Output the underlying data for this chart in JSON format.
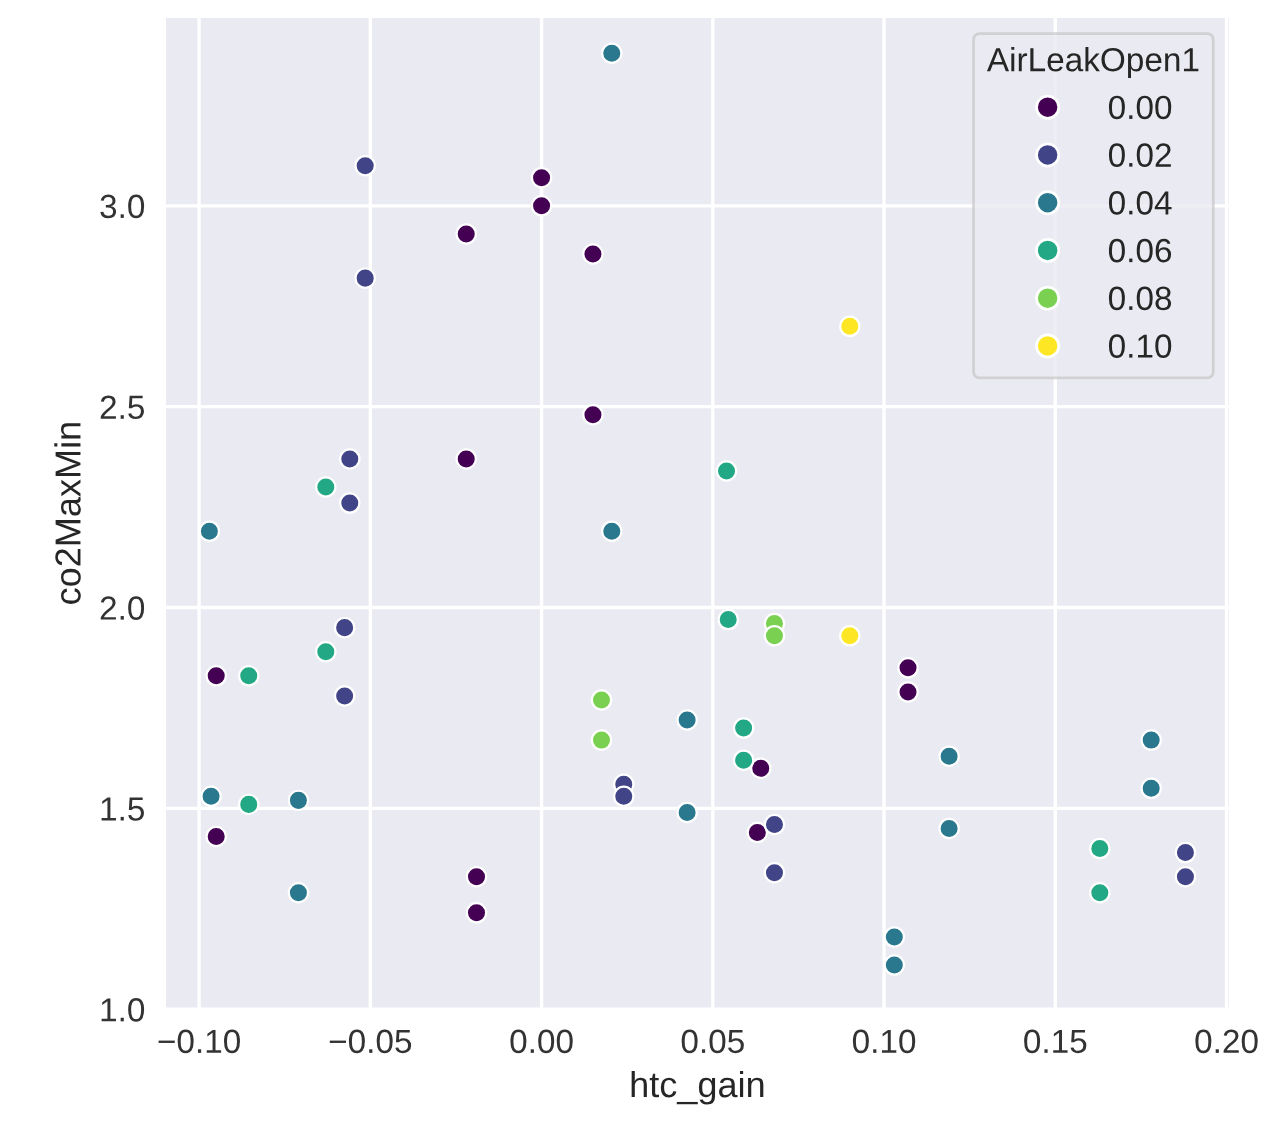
{
  "chart_data": {
    "type": "scatter",
    "xlabel": "htc_gain",
    "ylabel": "co2MaxMin",
    "legend_title": "AirLeakOpen1",
    "legend": "top right",
    "grid": true,
    "marker": "circle",
    "xlim": [
      -0.11,
      0.201
    ],
    "ylim": [
      1.0,
      3.47
    ],
    "xticks": [
      {
        "value": -0.1,
        "label": "−0.10"
      },
      {
        "value": -0.05,
        "label": "−0.05"
      },
      {
        "value": 0,
        "label": "0.00"
      },
      {
        "value": 0.05,
        "label": "0.05"
      },
      {
        "value": 0.1,
        "label": "0.10"
      },
      {
        "value": 0.15,
        "label": "0.15"
      },
      {
        "value": 0.2,
        "label": "0.20"
      }
    ],
    "yticks": [
      {
        "value": 1.0,
        "label": "1.0"
      },
      {
        "value": 1.5,
        "label": "1.5"
      },
      {
        "value": 2.0,
        "label": "2.0"
      },
      {
        "value": 2.5,
        "label": "2.5"
      },
      {
        "value": 3.0,
        "label": "3.0"
      }
    ],
    "series": [
      {
        "name": "0.00",
        "color": "#440154",
        "x": [
          0,
          0,
          -0.022,
          0.015,
          0.015,
          -0.022,
          -0.095,
          -0.095,
          -0.019,
          -0.019,
          0.107,
          0.107,
          0.064,
          0.063
        ],
        "values": [
          3.07,
          3.0,
          2.93,
          2.88,
          2.48,
          2.37,
          1.83,
          1.43,
          1.33,
          1.24,
          1.85,
          1.79,
          1.6,
          1.44
        ]
      },
      {
        "name": "0.02",
        "color": "#414487",
        "x": [
          -0.0515,
          -0.0515,
          -0.056,
          -0.056,
          -0.0575,
          -0.0575,
          0.024,
          0.024,
          0.068,
          0.068,
          0.188,
          0.188
        ],
        "values": [
          3.1,
          2.82,
          2.37,
          2.26,
          1.95,
          1.78,
          1.56,
          1.53,
          1.46,
          1.34,
          1.39,
          1.33
        ]
      },
      {
        "name": "0.04",
        "color": "#2a788e",
        "x": [
          0.0205,
          -0.097,
          0.0205,
          0.0425,
          -0.0965,
          -0.071,
          -0.071,
          0.0425,
          0.119,
          0.178,
          0.178,
          0.119,
          0.103,
          0.103
        ],
        "values": [
          3.38,
          2.19,
          2.19,
          1.72,
          1.53,
          1.52,
          1.29,
          1.49,
          1.63,
          1.67,
          1.55,
          1.45,
          1.18,
          1.11
        ]
      },
      {
        "name": "0.06",
        "color": "#22a884",
        "x": [
          -0.063,
          0.054,
          -0.063,
          -0.0855,
          -0.0855,
          0.0545,
          0.059,
          0.059,
          0.163,
          0.163
        ],
        "values": [
          2.3,
          2.34,
          1.89,
          1.83,
          1.51,
          1.97,
          1.7,
          1.62,
          1.4,
          1.29
        ]
      },
      {
        "name": "0.08",
        "color": "#7ad151",
        "x": [
          0.0175,
          0.0175,
          0.068,
          0.068
        ],
        "values": [
          1.77,
          1.67,
          1.96,
          1.93
        ]
      },
      {
        "name": "0.10",
        "color": "#fde725",
        "x": [
          0.09,
          0.09
        ],
        "values": [
          2.7,
          1.93
        ]
      }
    ]
  }
}
